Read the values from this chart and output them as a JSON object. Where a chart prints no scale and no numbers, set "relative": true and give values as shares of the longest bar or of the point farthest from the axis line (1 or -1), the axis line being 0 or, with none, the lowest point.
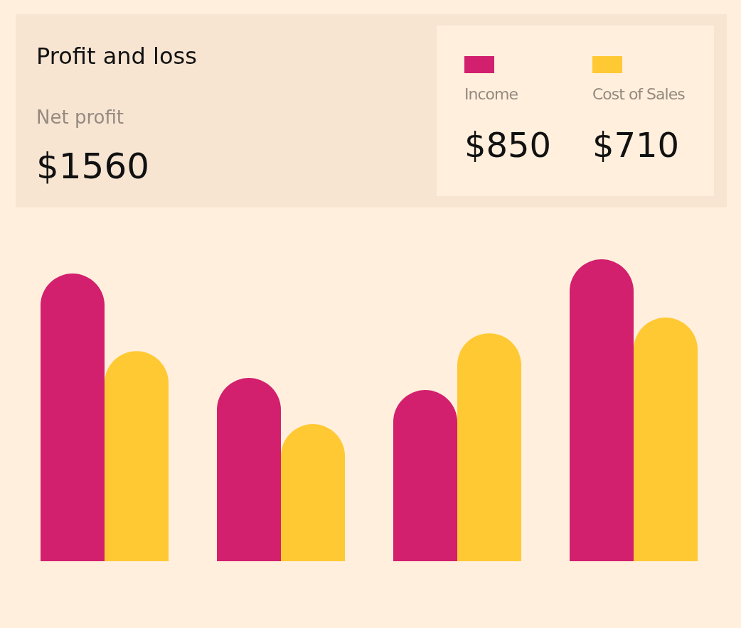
{
  "chart_data": {
    "type": "bar",
    "title": "Profit and loss",
    "relative": true,
    "legend": "top right",
    "annotations": [
      "Net profit",
      "$1560",
      "$850",
      "$710"
    ],
    "categories": [
      null,
      null,
      null,
      null
    ],
    "series": [
      {
        "name": "Income",
        "color": "#d21f6e",
        "values": [
          0.953,
          0.607,
          0.567,
          1.0
        ]
      },
      {
        "name": "Cost of Sales",
        "color": "#ffc933",
        "values": [
          0.696,
          0.454,
          0.755,
          0.807
        ]
      }
    ]
  }
}
